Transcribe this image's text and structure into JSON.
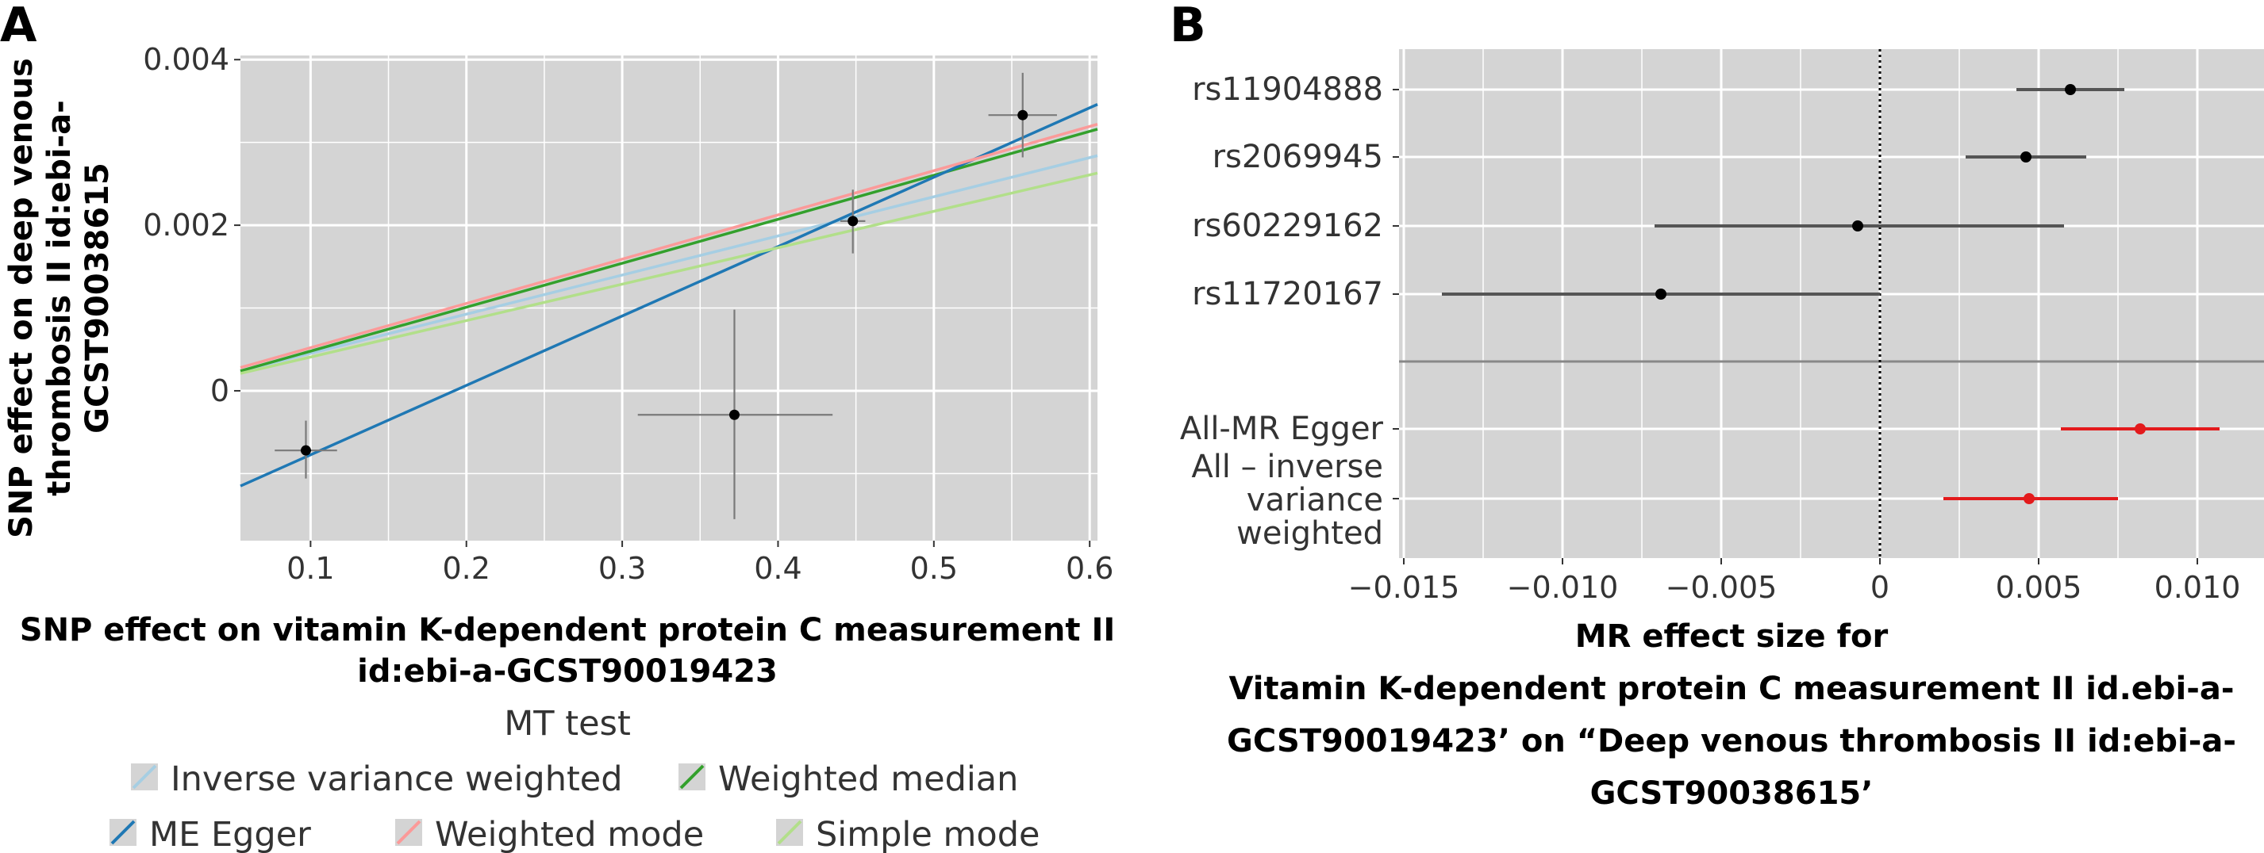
{
  "chart_data": [
    {
      "panel": "A",
      "type": "scatter",
      "xlabel": [
        "SNP effect on vitamin K-dependent protein C measurement II",
        "id:ebi-a-GCST90019423"
      ],
      "ylabel": [
        "SNP effect on deep venous",
        "thrombosis II id:ebi-a-",
        "GCST90038615"
      ],
      "xlim": [
        0.055,
        0.605
      ],
      "ylim": [
        -0.00181,
        0.00405
      ],
      "x_ticks": [
        0.1,
        0.2,
        0.3,
        0.4,
        0.5,
        0.6
      ],
      "x_tick_labels": [
        "0.1",
        "0.2",
        "0.3",
        "0.4",
        "0.5",
        "0.6"
      ],
      "y_ticks": [
        0,
        0.002,
        0.004
      ],
      "y_tick_labels": [
        "0",
        "0.002",
        "0.004"
      ],
      "points": [
        {
          "x": 0.097,
          "y": -0.00072,
          "x_lo": 0.077,
          "x_hi": 0.117,
          "y_lo": -0.00036,
          "y_hi": -0.00106
        },
        {
          "x": 0.372,
          "y": -0.00029,
          "x_lo": 0.31,
          "x_hi": 0.435,
          "y_lo": 0.00098,
          "y_hi": -0.00155
        },
        {
          "x": 0.448,
          "y": 0.00205,
          "x_lo": 0.44,
          "x_hi": 0.456,
          "y_lo": 0.00243,
          "y_hi": 0.00166
        },
        {
          "x": 0.557,
          "y": 0.00333,
          "x_lo": 0.535,
          "x_hi": 0.579,
          "y_lo": 0.00384,
          "y_hi": 0.00282
        }
      ],
      "series": [
        {
          "name": "Inverse variance weighted",
          "color": "#a6cee3",
          "x1": 0.055,
          "y1": 0.00024,
          "x2": 0.605,
          "y2": 0.00284
        },
        {
          "name": "Weighted median",
          "color": "#33a02c",
          "x1": 0.055,
          "y1": 0.00024,
          "x2": 0.605,
          "y2": 0.00316
        },
        {
          "name": "ME Egger",
          "color": "#1f78b4",
          "x1": 0.055,
          "y1": -0.00115,
          "x2": 0.605,
          "y2": 0.00346
        },
        {
          "name": "Weighted mode",
          "color": "#fb9a99",
          "x1": 0.055,
          "y1": 0.00028,
          "x2": 0.605,
          "y2": 0.00322
        },
        {
          "name": "Simple mode",
          "color": "#b2df8a",
          "x1": 0.055,
          "y1": 0.00021,
          "x2": 0.605,
          "y2": 0.00263
        }
      ],
      "legend": {
        "title": "MT test",
        "placement": "bottom",
        "items": [
          {
            "label": "Inverse variance weighted",
            "color": "#a6cee3"
          },
          {
            "label": "Weighted median",
            "color": "#33a02c"
          },
          {
            "label": "ME Egger",
            "color": "#1f78b4"
          },
          {
            "label": "Weighted mode",
            "color": "#fb9a99"
          },
          {
            "label": "Simple mode",
            "color": "#b2df8a"
          }
        ]
      },
      "grid": true
    },
    {
      "panel": "B",
      "type": "forest",
      "xlabel": [
        "MR effect size for",
        "Vitamin K-dependent protein C measurement II id.ebi-a-",
        "GCST90019423’ on “Deep venous thrombosis II id:ebi-a-",
        "GCST90038615’"
      ],
      "xlim": [
        -0.01515,
        0.0121
      ],
      "x_ticks": [
        -0.015,
        -0.01,
        -0.005,
        0,
        0.005,
        0.01
      ],
      "x_tick_labels": [
        "−0.015",
        "−0.010",
        "−0.005",
        "0",
        "0.005",
        "0.010"
      ],
      "rows": [
        {
          "label": [
            "rs11904888"
          ],
          "estimate": 0.006,
          "lo": 0.0043,
          "hi": 0.0077,
          "color": "#000000",
          "line_color": "#555555"
        },
        {
          "label": [
            "rs2069945"
          ],
          "estimate": 0.0046,
          "lo": 0.0027,
          "hi": 0.0065,
          "color": "#000000",
          "line_color": "#555555"
        },
        {
          "label": [
            "rs60229162"
          ],
          "estimate": -0.0007,
          "lo": -0.0071,
          "hi": 0.0058,
          "color": "#000000",
          "line_color": "#555555"
        },
        {
          "label": [
            "rs11720167"
          ],
          "estimate": -0.0069,
          "lo": -0.0138,
          "hi": 0.0,
          "color": "#000000",
          "line_color": "#555555"
        },
        {
          "label": [
            "All-MR Egger"
          ],
          "estimate": 0.0082,
          "lo": 0.0057,
          "hi": 0.0107,
          "color": "#e31a1c",
          "line_color": "#e31a1c"
        },
        {
          "label": [
            "All – inverse",
            "variance",
            "weighted"
          ],
          "estimate": 0.0047,
          "lo": 0.002,
          "hi": 0.0075,
          "color": "#e31a1c",
          "line_color": "#e31a1c"
        }
      ],
      "reference_line": 0,
      "grid": true
    }
  ],
  "colors": {
    "panel_bg": "#d4d4d4",
    "grid": "#ffffff",
    "separator": "#888888"
  }
}
